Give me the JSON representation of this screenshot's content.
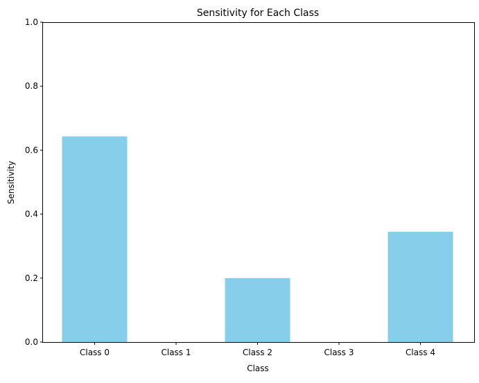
{
  "chart_data": {
    "type": "bar",
    "title": "Sensitivity for Each Class",
    "xlabel": "Class",
    "ylabel": "Sensitivity",
    "categories": [
      "Class 0",
      "Class 1",
      "Class 2",
      "Class 3",
      "Class 4"
    ],
    "values": [
      0.643,
      0.0,
      0.2,
      0.0,
      0.345
    ],
    "ylim": [
      0,
      1
    ],
    "yticks": [
      "0.0",
      "0.2",
      "0.4",
      "0.6",
      "0.8",
      "1.0"
    ],
    "bar_color": "#87CEEB",
    "grid": false,
    "legend": "none"
  }
}
